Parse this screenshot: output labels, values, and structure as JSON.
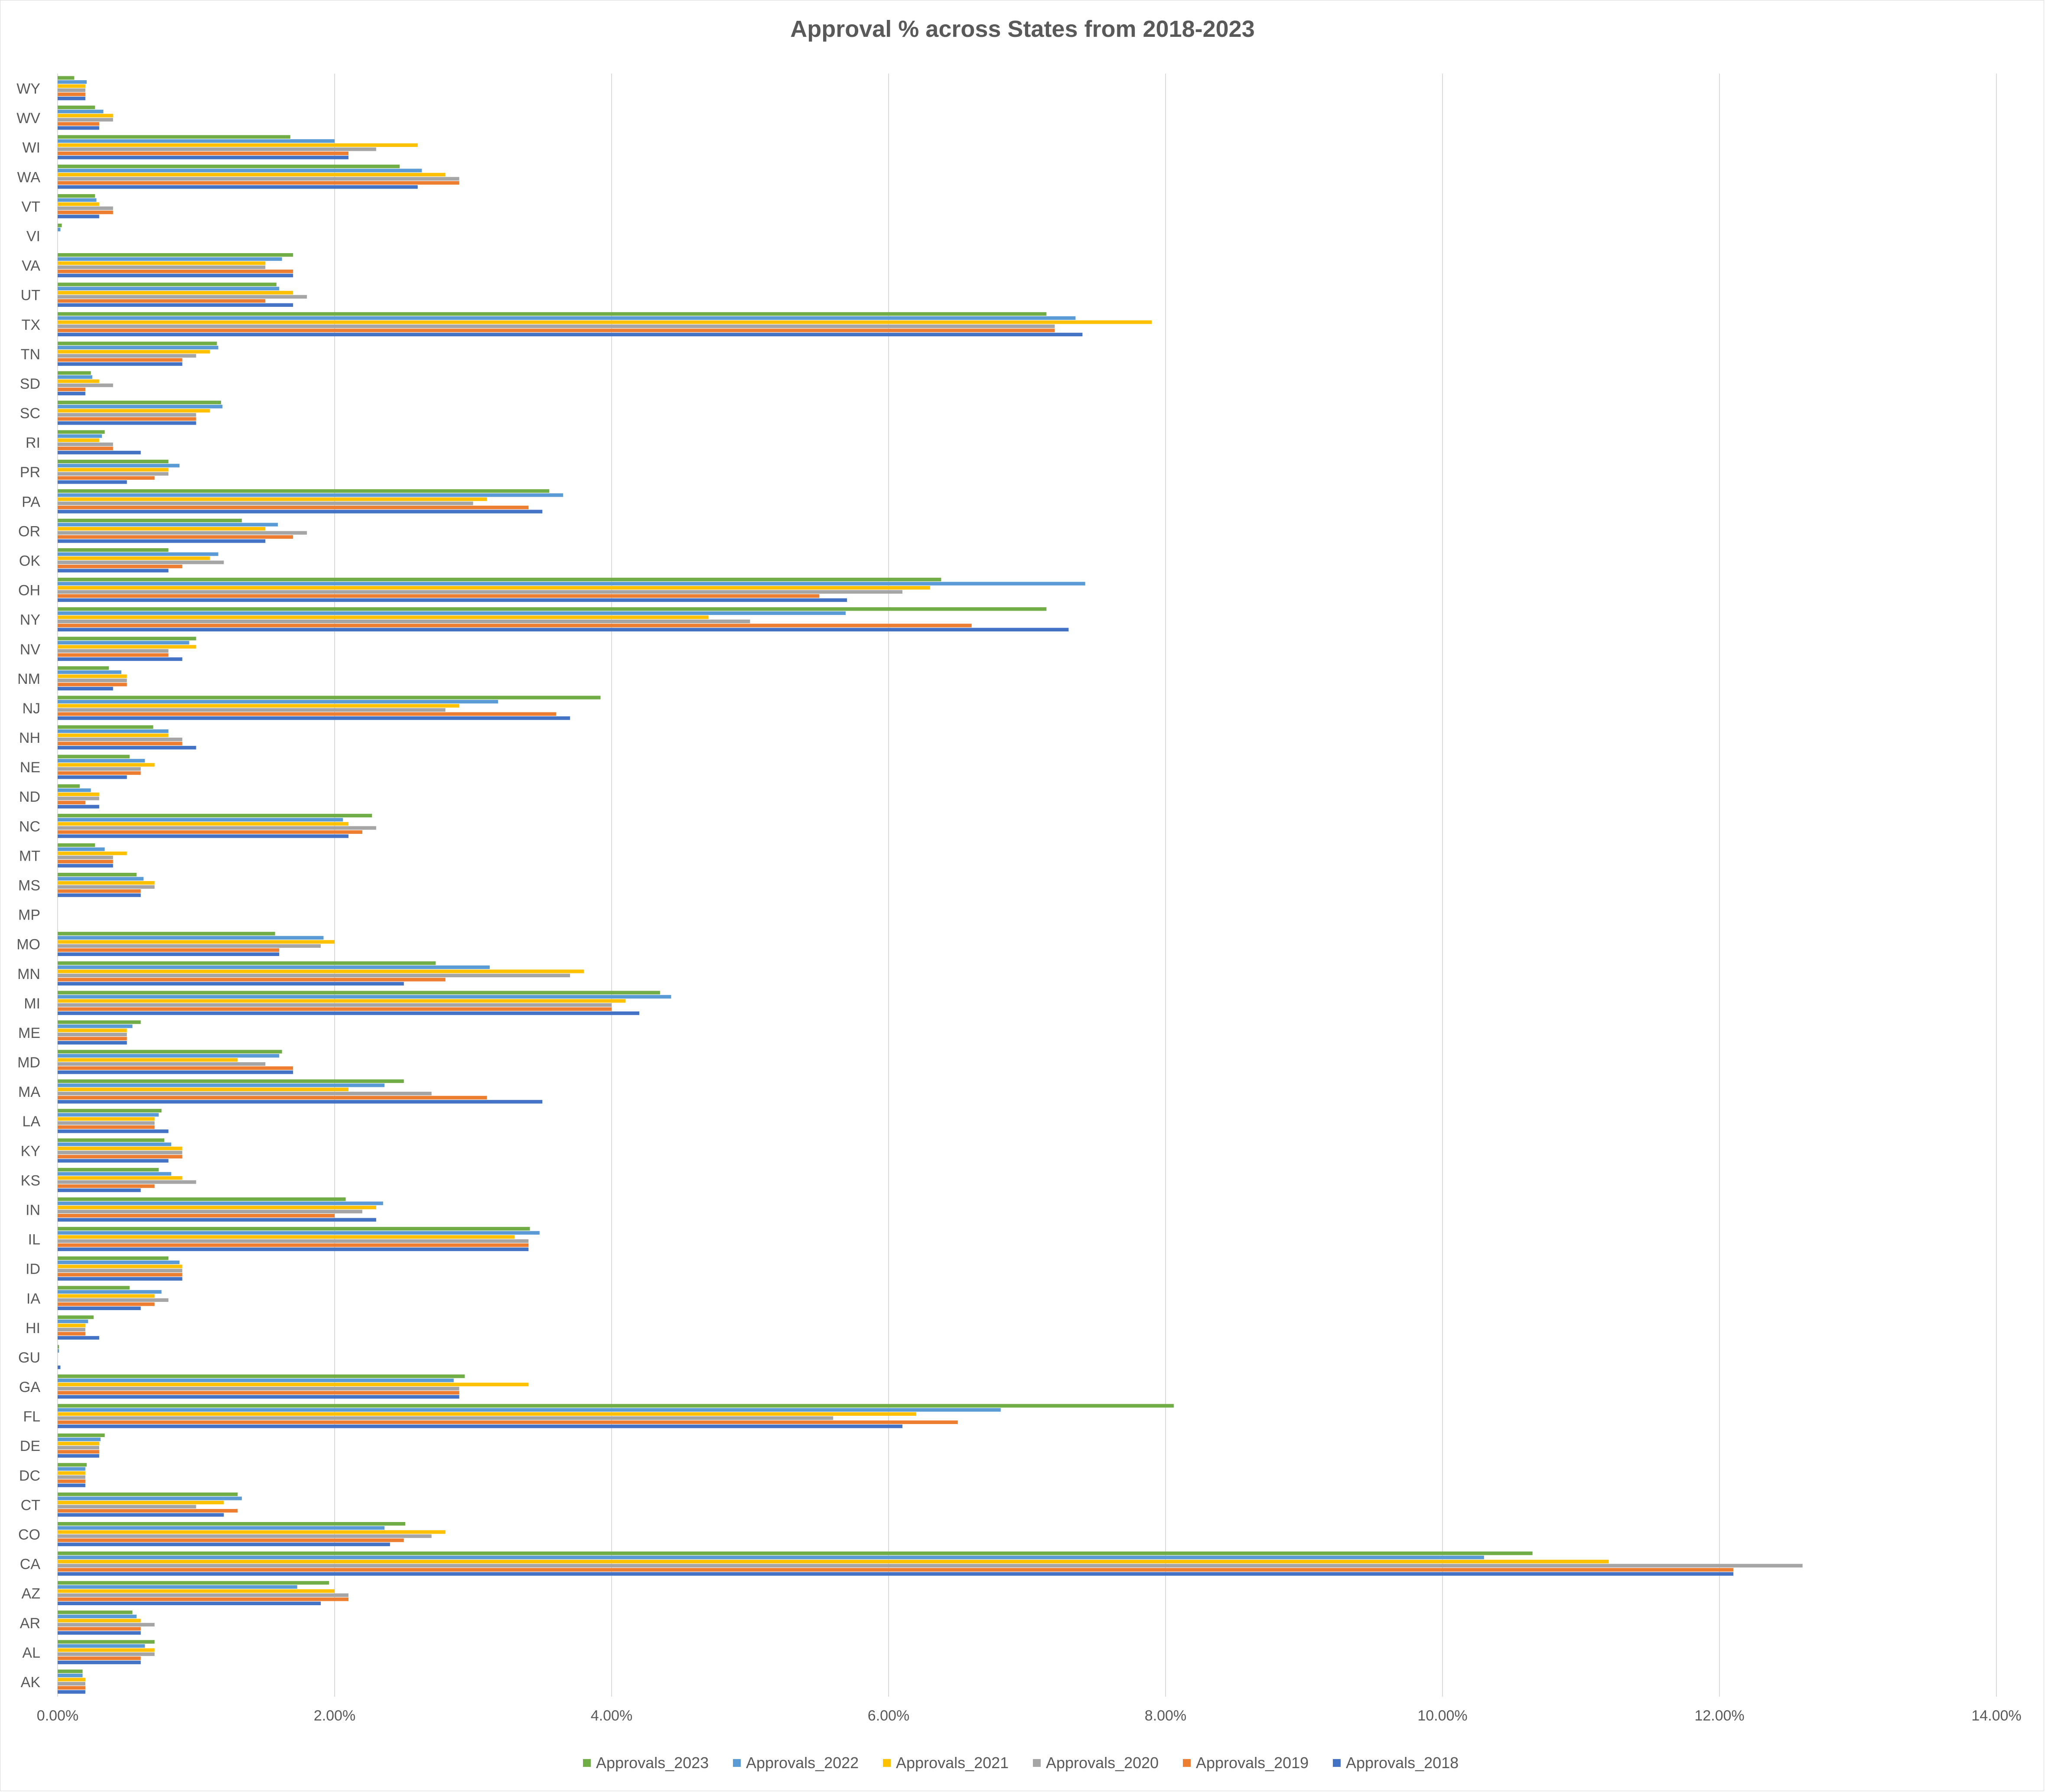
{
  "chart_data": {
    "type": "bar",
    "orientation": "horizontal",
    "title": "Approval % across States from 2018-2023",
    "xlabel": "",
    "ylabel": "",
    "xlim": [
      0,
      14
    ],
    "x_tick_labels": [
      "0.00%",
      "2.00%",
      "4.00%",
      "6.00%",
      "8.00%",
      "10.00%",
      "12.00%",
      "14.00%"
    ],
    "grid": "vertical gridlines",
    "legend_position": "bottom",
    "categories": [
      "WY",
      "WV",
      "WI",
      "WA",
      "VT",
      "VI",
      "VA",
      "UT",
      "TX",
      "TN",
      "SD",
      "SC",
      "RI",
      "PR",
      "PA",
      "OR",
      "OK",
      "OH",
      "NY",
      "NV",
      "NM",
      "NJ",
      "NH",
      "NE",
      "ND",
      "NC",
      "MT",
      "MS",
      "MP",
      "MO",
      "MN",
      "MI",
      "ME",
      "MD",
      "MA",
      "LA",
      "KY",
      "KS",
      "IN",
      "IL",
      "ID",
      "IA",
      "HI",
      "GU",
      "GA",
      "FL",
      "DE",
      "DC",
      "CT",
      "CO",
      "CA",
      "AZ",
      "AR",
      "AL",
      "AK"
    ],
    "series": [
      {
        "name": "Approvals_2023",
        "color": "#70ad47",
        "values": [
          0.12,
          0.27,
          1.68,
          2.47,
          0.27,
          0.03,
          1.7,
          1.58,
          7.14,
          1.15,
          0.24,
          1.18,
          0.34,
          0.8,
          3.55,
          1.33,
          0.8,
          6.38,
          7.14,
          1.0,
          0.37,
          3.92,
          0.69,
          0.52,
          0.16,
          2.27,
          0.27,
          0.57,
          0.0,
          1.57,
          2.73,
          4.35,
          0.6,
          1.62,
          2.5,
          0.75,
          0.77,
          0.73,
          2.08,
          3.41,
          0.8,
          0.52,
          0.26,
          0.01,
          2.94,
          8.06,
          0.34,
          0.21,
          1.3,
          2.51,
          10.65,
          1.96,
          0.54,
          0.7,
          0.18
        ]
      },
      {
        "name": "Approvals_2022",
        "color": "#5b9bd5",
        "values": [
          0.21,
          0.33,
          2.0,
          2.63,
          0.28,
          0.02,
          1.62,
          1.6,
          7.35,
          1.16,
          0.25,
          1.19,
          0.32,
          0.88,
          3.65,
          1.59,
          1.16,
          7.42,
          5.69,
          0.95,
          0.46,
          3.18,
          0.8,
          0.63,
          0.24,
          2.06,
          0.34,
          0.62,
          0.0,
          1.92,
          3.12,
          4.43,
          0.54,
          1.6,
          2.36,
          0.73,
          0.82,
          0.82,
          2.35,
          3.48,
          0.88,
          0.75,
          0.22,
          0.01,
          2.86,
          6.81,
          0.31,
          0.2,
          1.33,
          2.36,
          10.3,
          1.73,
          0.57,
          0.63,
          0.18
        ]
      },
      {
        "name": "Approvals_2021",
        "color": "#ffc000",
        "values": [
          0.2,
          0.4,
          2.6,
          2.8,
          0.3,
          0.0,
          1.5,
          1.7,
          7.9,
          1.1,
          0.3,
          1.1,
          0.3,
          0.8,
          3.1,
          1.5,
          1.1,
          6.3,
          4.7,
          1.0,
          0.5,
          2.9,
          0.8,
          0.7,
          0.3,
          2.1,
          0.5,
          0.7,
          0.0,
          2.0,
          3.8,
          4.1,
          0.5,
          1.3,
          2.1,
          0.7,
          0.9,
          0.9,
          2.3,
          3.3,
          0.9,
          0.7,
          0.2,
          0.0,
          3.4,
          6.2,
          0.3,
          0.2,
          1.2,
          2.8,
          11.2,
          2.0,
          0.6,
          0.7,
          0.2
        ]
      },
      {
        "name": "Approvals_2020",
        "color": "#a5a5a5",
        "values": [
          0.2,
          0.4,
          2.3,
          2.9,
          0.4,
          0.0,
          1.5,
          1.8,
          7.2,
          1.0,
          0.4,
          1.0,
          0.4,
          0.8,
          3.0,
          1.8,
          1.2,
          6.1,
          5.0,
          0.8,
          0.5,
          2.8,
          0.9,
          0.6,
          0.3,
          2.3,
          0.4,
          0.7,
          0.0,
          1.9,
          3.7,
          4.0,
          0.5,
          1.5,
          2.7,
          0.7,
          0.9,
          1.0,
          2.2,
          3.4,
          0.9,
          0.8,
          0.2,
          0.0,
          2.9,
          5.6,
          0.3,
          0.2,
          1.0,
          2.7,
          12.6,
          2.1,
          0.7,
          0.7,
          0.2
        ]
      },
      {
        "name": "Approvals_2019",
        "color": "#ed7d31",
        "values": [
          0.2,
          0.3,
          2.1,
          2.9,
          0.4,
          0.0,
          1.7,
          1.5,
          7.2,
          0.9,
          0.2,
          1.0,
          0.4,
          0.7,
          3.4,
          1.7,
          0.9,
          5.5,
          6.6,
          0.8,
          0.5,
          3.6,
          0.9,
          0.6,
          0.2,
          2.2,
          0.4,
          0.6,
          0.0,
          1.6,
          2.8,
          4.0,
          0.5,
          1.7,
          3.1,
          0.7,
          0.9,
          0.7,
          2.0,
          3.4,
          0.9,
          0.7,
          0.2,
          0.0,
          2.9,
          6.5,
          0.3,
          0.2,
          1.3,
          2.5,
          12.1,
          2.1,
          0.6,
          0.6,
          0.2
        ]
      },
      {
        "name": "Approvals_2018",
        "color": "#4472c4",
        "values": [
          0.2,
          0.3,
          2.1,
          2.6,
          0.3,
          0.0,
          1.7,
          1.7,
          7.4,
          0.9,
          0.2,
          1.0,
          0.6,
          0.5,
          3.5,
          1.5,
          0.8,
          5.7,
          7.3,
          0.9,
          0.4,
          3.7,
          1.0,
          0.5,
          0.3,
          2.1,
          0.4,
          0.6,
          0.0,
          1.6,
          2.5,
          4.2,
          0.5,
          1.7,
          3.5,
          0.8,
          0.8,
          0.6,
          2.3,
          3.4,
          0.9,
          0.6,
          0.3,
          0.02,
          2.9,
          6.1,
          0.3,
          0.2,
          1.2,
          2.4,
          12.1,
          1.9,
          0.6,
          0.6,
          0.2
        ]
      }
    ]
  }
}
